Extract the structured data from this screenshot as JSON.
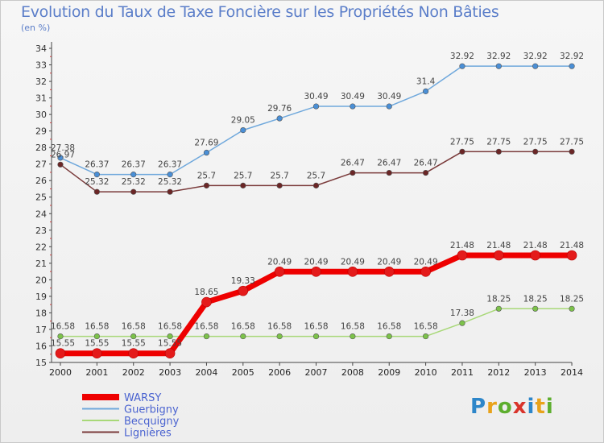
{
  "header": {
    "title": "Evolution du Taux de Taxe Foncière sur les Propriétés Non Bâties",
    "unit": "(en %)"
  },
  "logo": {
    "text": "Proxiti"
  },
  "chart_data": {
    "type": "line",
    "title": "Evolution du Taux de Taxe Foncière sur les Propriétés Non Bâties",
    "ylabel": "(en %)",
    "xlabel": "",
    "ylim": [
      15,
      34
    ],
    "yticks": [
      15,
      16,
      17,
      18,
      19,
      20,
      21,
      22,
      23,
      24,
      25,
      26,
      27,
      28,
      29,
      30,
      31,
      32,
      33,
      34
    ],
    "categories": [
      "2000",
      "2001",
      "2002",
      "2003",
      "2004",
      "2005",
      "2006",
      "2007",
      "2008",
      "2009",
      "2010",
      "2011",
      "2012",
      "2013",
      "2014"
    ],
    "legend_position": "bottom-left",
    "grid": false,
    "series": [
      {
        "name": "WARSY",
        "color": "#ee0000",
        "marker": "#e41b1b",
        "width": 7,
        "values": [
          15.55,
          15.55,
          15.55,
          15.55,
          18.65,
          19.33,
          20.49,
          20.49,
          20.49,
          20.49,
          20.49,
          21.48,
          21.48,
          21.48,
          21.48
        ],
        "labels": [
          "15.55",
          "15.55",
          "15.55",
          "15.55",
          "18.65",
          "19.33",
          "20.49",
          "20.49",
          "20.49",
          "20.49",
          "20.49",
          "21.48",
          "21.48",
          "21.48",
          "21.48"
        ]
      },
      {
        "name": "Guerbigny",
        "color": "#6fa8dc",
        "marker": "#4a8fd6",
        "width": 1.5,
        "values": [
          27.38,
          26.37,
          26.37,
          26.37,
          27.69,
          29.05,
          29.76,
          30.49,
          30.49,
          30.49,
          31.4,
          32.92,
          32.92,
          32.92,
          32.92
        ],
        "labels": [
          "27.38",
          "26.37",
          "26.37",
          "26.37",
          "27.69",
          "29.05",
          "29.76",
          "30.49",
          "30.49",
          "30.49",
          "31.4",
          "32.92",
          "32.92",
          "32.92",
          "32.92"
        ]
      },
      {
        "name": "Becquigny",
        "color": "#a8d878",
        "marker": "#7cc24a",
        "width": 1.5,
        "values": [
          16.58,
          16.58,
          16.58,
          16.58,
          16.58,
          16.58,
          16.58,
          16.58,
          16.58,
          16.58,
          16.58,
          17.38,
          18.25,
          18.25,
          18.25
        ],
        "labels": [
          "16.58",
          "16.58",
          "16.58",
          "16.58",
          "16.58",
          "16.58",
          "16.58",
          "16.58",
          "16.58",
          "16.58",
          "16.58",
          "17.38",
          "18.25",
          "18.25",
          "18.25"
        ]
      },
      {
        "name": "Lignières",
        "color": "#7a3a3a",
        "marker": "#6b2626",
        "width": 1.5,
        "values": [
          26.97,
          25.32,
          25.32,
          25.32,
          25.7,
          25.7,
          25.7,
          25.7,
          26.47,
          26.47,
          26.47,
          27.75,
          27.75,
          27.75,
          27.75
        ],
        "labels": [
          "26.97",
          "25.32",
          "25.32",
          "25.32",
          "25.7",
          "25.7",
          "25.7",
          "25.7",
          "26.47",
          "26.47",
          "26.47",
          "27.75",
          "27.75",
          "27.75",
          "27.75"
        ]
      }
    ]
  }
}
